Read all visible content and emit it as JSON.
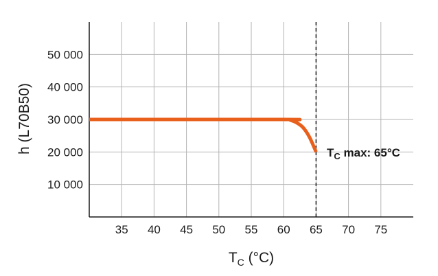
{
  "chart_data": {
    "type": "line",
    "title": "",
    "xlabel": {
      "main": "T",
      "sub": "C",
      "unit": " (°C)"
    },
    "ylabel": "h (L70B50)",
    "xlim": [
      30,
      80
    ],
    "ylim": [
      0,
      60000
    ],
    "x_ticks": [
      35,
      40,
      45,
      50,
      55,
      60,
      65,
      70,
      75
    ],
    "x_tick_labels": [
      "35",
      "40",
      "45",
      "50",
      "55",
      "60",
      "65",
      "70",
      "75"
    ],
    "y_ticks": [
      10000,
      20000,
      30000,
      40000,
      50000
    ],
    "y_tick_labels": [
      "10 000",
      "20 000",
      "30 000",
      "40 000",
      "50 000"
    ],
    "grid": true,
    "series": [
      {
        "color": "#e8601c",
        "points": [
          {
            "x": 30,
            "y": 30000
          },
          {
            "x": 60,
            "y": 30000
          },
          {
            "x": 61,
            "y": 29800
          },
          {
            "x": 62,
            "y": 29000
          },
          {
            "x": 63,
            "y": 27500
          },
          {
            "x": 64,
            "y": 24500
          },
          {
            "x": 65,
            "y": 20000
          }
        ]
      }
    ],
    "reference_line": {
      "x": 65,
      "style": "dashed",
      "color": "#1a1a1a"
    },
    "annotation": {
      "main": "T",
      "sub": "C",
      "rest": " max: 65°C",
      "x": 65,
      "y": 20000
    }
  }
}
